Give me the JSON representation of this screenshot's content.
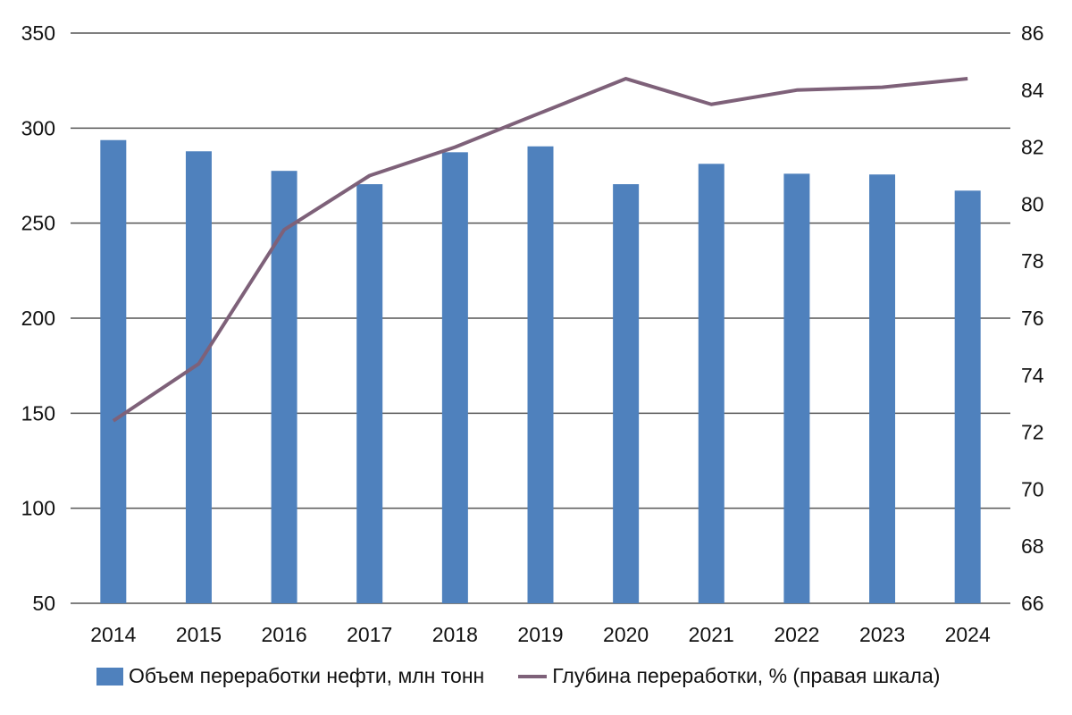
{
  "chart_data": {
    "type": "bar+line",
    "categories": [
      "2014",
      "2015",
      "2016",
      "2017",
      "2018",
      "2019",
      "2020",
      "2021",
      "2022",
      "2023",
      "2024"
    ],
    "series": [
      {
        "name": "Объем переработки нефти, млн тонн",
        "type": "bar",
        "axis": "left",
        "values": [
          293.7,
          287.8,
          277.5,
          270.5,
          287.3,
          290.4,
          270.5,
          281.2,
          276.0,
          275.6,
          267.1
        ]
      },
      {
        "name": "Глубина переработки, % (правая шкала)",
        "type": "line",
        "axis": "right",
        "values": [
          72.4,
          74.4,
          79.1,
          81.0,
          82.0,
          83.2,
          84.4,
          83.5,
          84.0,
          84.1,
          84.4
        ]
      }
    ],
    "y_left": {
      "range": [
        50,
        350
      ],
      "ticks": [
        "50",
        "100",
        "150",
        "200",
        "250",
        "300",
        "350"
      ]
    },
    "y_right": {
      "range": [
        66,
        86
      ],
      "ticks": [
        "66",
        "68",
        "70",
        "72",
        "74",
        "76",
        "78",
        "80",
        "82",
        "84",
        "86"
      ]
    },
    "grid": true,
    "legend_position": "bottom",
    "colors": {
      "bar": "#4f81bd",
      "line": "#7e6179",
      "grid": "#555555"
    }
  }
}
